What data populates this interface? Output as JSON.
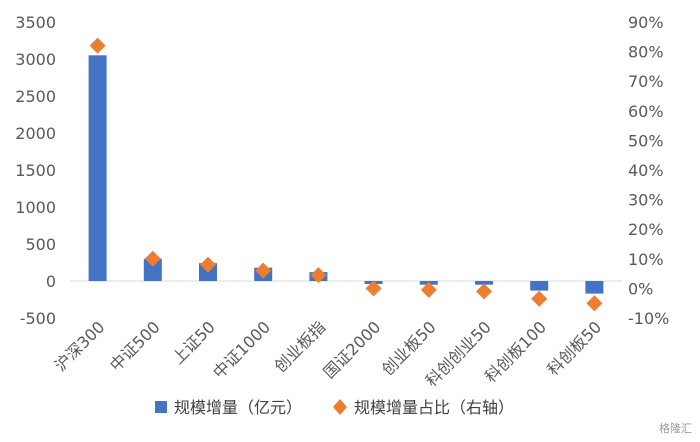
{
  "chart_data": {
    "type": "bar",
    "categories": [
      "沪深300",
      "中证500",
      "上证50",
      "中证1000",
      "创业板指",
      "国证2000",
      "创业板50",
      "科创创业50",
      "科创板100",
      "科创板50"
    ],
    "series": [
      {
        "name": "规模增量（亿元）",
        "type": "bar",
        "axis": "left",
        "color": "#4472C4",
        "values": [
          3050,
          300,
          240,
          180,
          120,
          -40,
          -50,
          -50,
          -130,
          -170
        ]
      },
      {
        "name": "规模增量占比（右轴）",
        "type": "scatter",
        "marker": "diamond",
        "axis": "right",
        "color": "#ED7D31",
        "values": [
          82,
          10,
          8,
          6,
          4.5,
          0,
          -0.5,
          -1,
          -3.5,
          -5
        ]
      }
    ],
    "y_left": {
      "lim": [
        -500,
        3500
      ],
      "ticks": [
        "-500",
        "0",
        "500",
        "1000",
        "1500",
        "2000",
        "2500",
        "3000",
        "3500"
      ]
    },
    "y_right": {
      "lim": [
        -10,
        90
      ],
      "ticks": [
        "-10%",
        "0%",
        "10%",
        "20%",
        "30%",
        "40%",
        "50%",
        "60%",
        "70%",
        "80%",
        "90%"
      ]
    },
    "grid": false,
    "legend": "bottom"
  },
  "watermark": "格隆汇"
}
